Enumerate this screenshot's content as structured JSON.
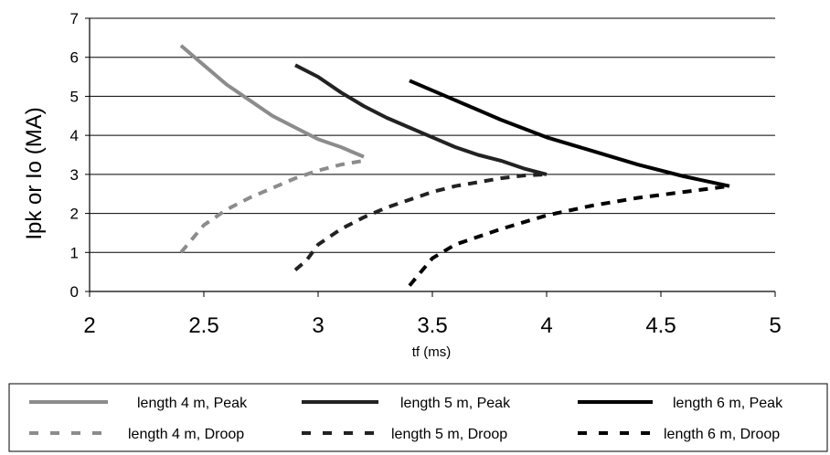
{
  "chart_data": {
    "type": "line",
    "title": "",
    "xlabel": "tf (ms)",
    "ylabel": "Ipk or Io (MA)",
    "xlim": [
      2,
      5
    ],
    "ylim": [
      0,
      7
    ],
    "x_ticks": [
      "2",
      "2.5",
      "3",
      "3.5",
      "4",
      "4.5",
      "5"
    ],
    "y_ticks": [
      "0",
      "1",
      "2",
      "3",
      "4",
      "5",
      "6",
      "7"
    ],
    "grid": "horizontal",
    "legend_position": "bottom",
    "series": [
      {
        "name": "length 4 m, Peak",
        "style": "solid",
        "color": "#8c8c8c",
        "x": [
          2.4,
          2.5,
          2.6,
          2.7,
          2.8,
          2.9,
          3.0,
          3.1,
          3.2
        ],
        "y": [
          6.3,
          5.8,
          5.3,
          4.9,
          4.5,
          4.2,
          3.9,
          3.7,
          3.45
        ]
      },
      {
        "name": "length 5 m, Peak",
        "style": "solid",
        "color": "#222222",
        "x": [
          2.9,
          3.0,
          3.1,
          3.2,
          3.3,
          3.4,
          3.5,
          3.6,
          3.7,
          3.8,
          3.9,
          4.0
        ],
        "y": [
          5.8,
          5.5,
          5.1,
          4.75,
          4.45,
          4.2,
          3.95,
          3.7,
          3.5,
          3.35,
          3.15,
          3.0
        ]
      },
      {
        "name": "length 6 m, Peak",
        "style": "solid",
        "color": "#000000",
        "x": [
          3.4,
          3.6,
          3.8,
          4.0,
          4.2,
          4.4,
          4.6,
          4.8
        ],
        "y": [
          5.4,
          4.9,
          4.4,
          3.95,
          3.6,
          3.25,
          2.95,
          2.7
        ]
      },
      {
        "name": "length 4 m, Droop",
        "style": "dashed",
        "color": "#8c8c8c",
        "x": [
          2.4,
          2.45,
          2.5,
          2.6,
          2.7,
          2.8,
          2.9,
          3.0,
          3.1,
          3.2
        ],
        "y": [
          1.0,
          1.35,
          1.7,
          2.1,
          2.4,
          2.65,
          2.9,
          3.1,
          3.25,
          3.35
        ]
      },
      {
        "name": "length 5 m, Droop",
        "style": "dashed",
        "color": "#222222",
        "x": [
          2.9,
          2.95,
          3.0,
          3.1,
          3.2,
          3.3,
          3.4,
          3.5,
          3.6,
          3.7,
          3.8,
          3.9,
          4.0
        ],
        "y": [
          0.55,
          0.8,
          1.2,
          1.6,
          1.9,
          2.15,
          2.35,
          2.55,
          2.7,
          2.8,
          2.9,
          2.97,
          3.0
        ]
      },
      {
        "name": "length 6 m, Droop",
        "style": "dashed",
        "color": "#000000",
        "x": [
          3.4,
          3.45,
          3.5,
          3.6,
          3.8,
          4.0,
          4.2,
          4.4,
          4.6,
          4.8
        ],
        "y": [
          0.15,
          0.5,
          0.85,
          1.2,
          1.6,
          1.95,
          2.2,
          2.4,
          2.55,
          2.7
        ]
      }
    ]
  }
}
